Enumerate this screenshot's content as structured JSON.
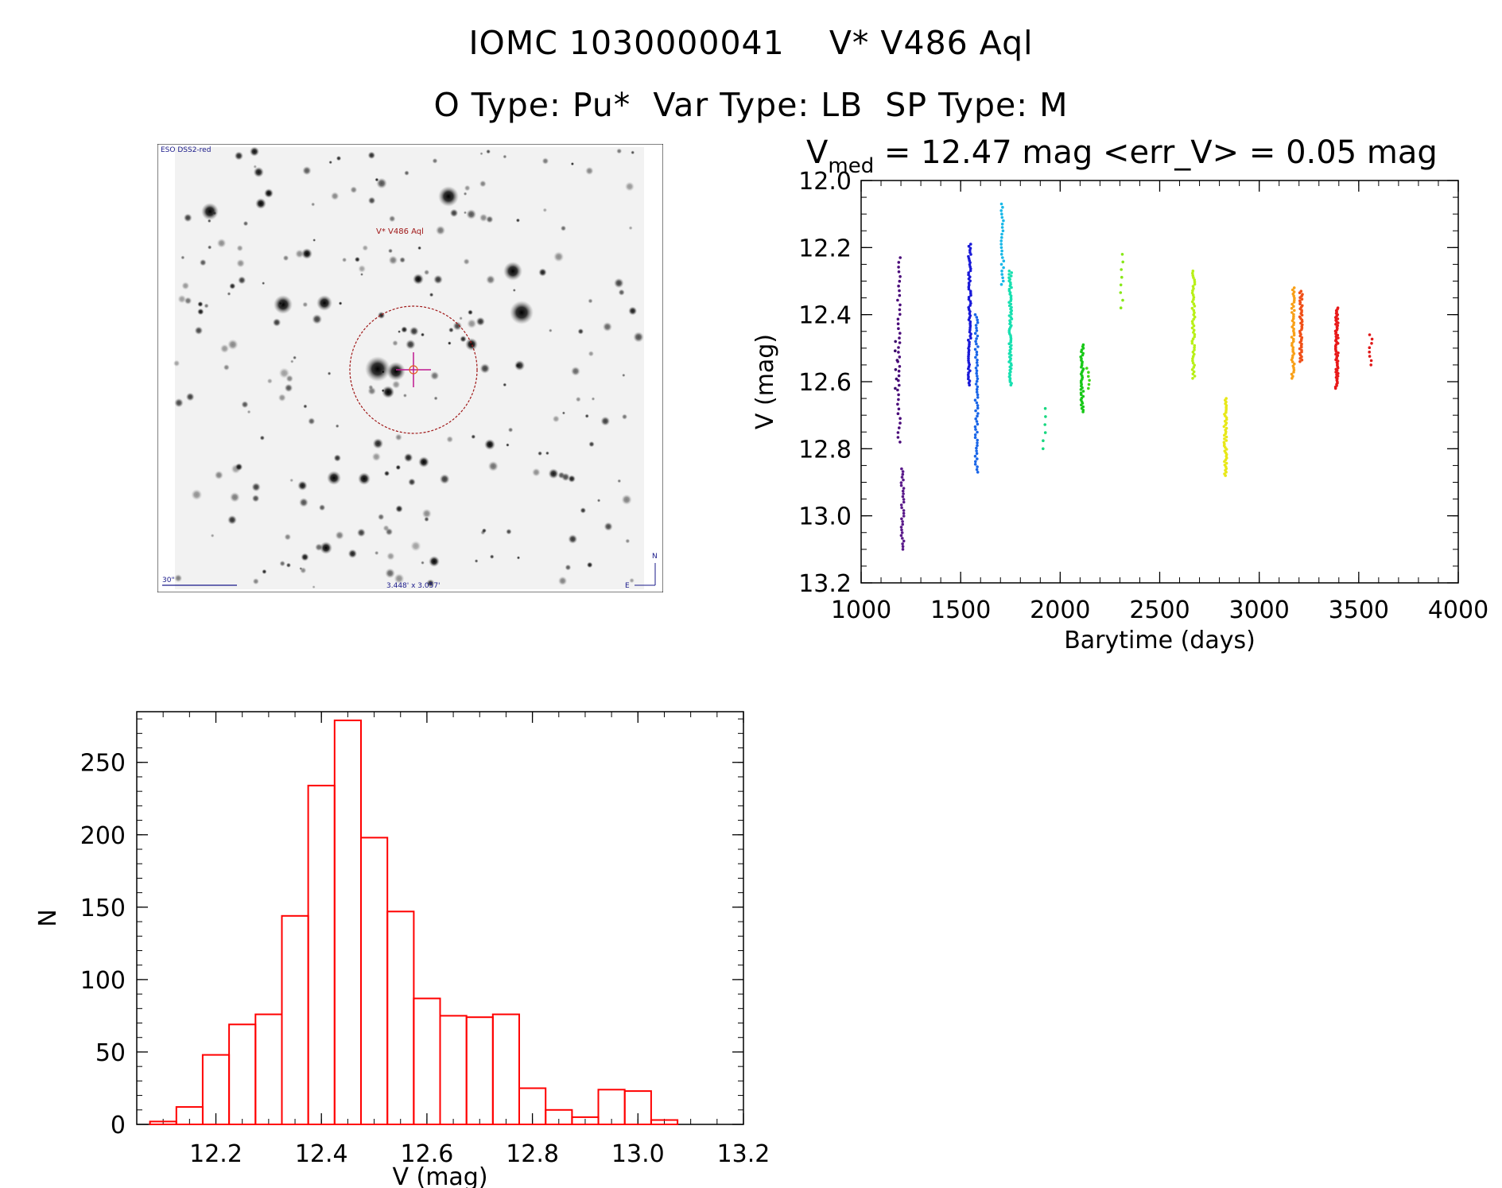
{
  "header": {
    "title_line1": "IOMC 1030000041    V* V486 Aql",
    "title_line2": "O Type: Pu*  Var Type: LB  SP Type: M"
  },
  "sky_image": {
    "survey_label": "ESO DSS2-red",
    "target_label": "V* V486 Aql",
    "scale_label": "30\"",
    "size_label": "3.448' x 3.057'",
    "compass_n": "N",
    "compass_e": "E"
  },
  "lightcurve": {
    "title_prefix": "V",
    "title_sub": "med",
    "title_rest": " = 12.47 mag <err_V> = 0.05 mag"
  },
  "colors": {
    "histogram": "#ff0000",
    "axes": "#000000",
    "circle": "#a01818"
  },
  "chart_data": [
    {
      "type": "scatter",
      "xlabel": "Barytime (days)",
      "ylabel": "V (mag)",
      "xlim": [
        1000,
        4000
      ],
      "ylim": [
        13.2,
        12.0
      ],
      "y_inverted": true,
      "xticks": [
        1000,
        1500,
        2000,
        2500,
        3000,
        3500,
        4000
      ],
      "yticks": [
        12.0,
        12.2,
        12.4,
        12.6,
        12.8,
        13.0,
        13.2
      ],
      "series": [
        {
          "x": 1175,
          "ymin": 12.48,
          "ymax": 12.62,
          "n": 6,
          "color": "#3a0a6a"
        },
        {
          "x": 1190,
          "ymin": 12.23,
          "ymax": 12.78,
          "n": 40,
          "color": "#4a0a7a"
        },
        {
          "x": 1208,
          "ymin": 12.86,
          "ymax": 13.1,
          "n": 30,
          "color": "#5a1a8a"
        },
        {
          "x": 1545,
          "ymin": 12.19,
          "ymax": 12.61,
          "n": 70,
          "color": "#1a1ad8"
        },
        {
          "x": 1580,
          "ymin": 12.4,
          "ymax": 12.87,
          "n": 60,
          "color": "#1a66e8"
        },
        {
          "x": 1710,
          "ymin": 12.07,
          "ymax": 12.31,
          "n": 25,
          "color": "#18b8e8"
        },
        {
          "x": 1750,
          "ymin": 12.27,
          "ymax": 12.61,
          "n": 70,
          "color": "#18e0b0"
        },
        {
          "x": 1920,
          "ymin": 12.68,
          "ymax": 12.8,
          "n": 6,
          "color": "#18d880"
        },
        {
          "x": 2110,
          "ymin": 12.49,
          "ymax": 12.69,
          "n": 40,
          "color": "#18c818"
        },
        {
          "x": 2140,
          "ymin": 12.56,
          "ymax": 12.62,
          "n": 6,
          "color": "#40d818"
        },
        {
          "x": 2310,
          "ymin": 12.22,
          "ymax": 12.38,
          "n": 8,
          "color": "#88e818"
        },
        {
          "x": 2670,
          "ymin": 12.27,
          "ymax": 12.59,
          "n": 50,
          "color": "#b8f018"
        },
        {
          "x": 2830,
          "ymin": 12.65,
          "ymax": 12.88,
          "n": 45,
          "color": "#e8e818"
        },
        {
          "x": 3170,
          "ymin": 12.32,
          "ymax": 12.59,
          "n": 45,
          "color": "#f8a018"
        },
        {
          "x": 3210,
          "ymin": 12.33,
          "ymax": 12.54,
          "n": 45,
          "color": "#f05018"
        },
        {
          "x": 3390,
          "ymin": 12.38,
          "ymax": 12.62,
          "n": 60,
          "color": "#e81818"
        },
        {
          "x": 3560,
          "ymin": 12.46,
          "ymax": 12.55,
          "n": 8,
          "color": "#e01818"
        }
      ]
    },
    {
      "type": "bar",
      "subtype": "histogram",
      "xlabel": "V (mag)",
      "ylabel": "N",
      "xlim": [
        12.05,
        13.2
      ],
      "ylim": [
        0,
        285
      ],
      "xticks": [
        12.2,
        12.4,
        12.6,
        12.8,
        13.0,
        13.2
      ],
      "yticks": [
        0,
        50,
        100,
        150,
        200,
        250
      ],
      "bin_edges": [
        12.075,
        12.125,
        12.175,
        12.225,
        12.275,
        12.325,
        12.375,
        12.425,
        12.475,
        12.525,
        12.575,
        12.625,
        12.675,
        12.725,
        12.775,
        12.825,
        12.875,
        12.925,
        12.975,
        13.025,
        13.075,
        13.125
      ],
      "values": [
        2,
        12,
        48,
        69,
        76,
        144,
        234,
        279,
        198,
        147,
        87,
        75,
        74,
        76,
        25,
        10,
        5,
        24,
        23,
        3,
        0
      ]
    }
  ]
}
